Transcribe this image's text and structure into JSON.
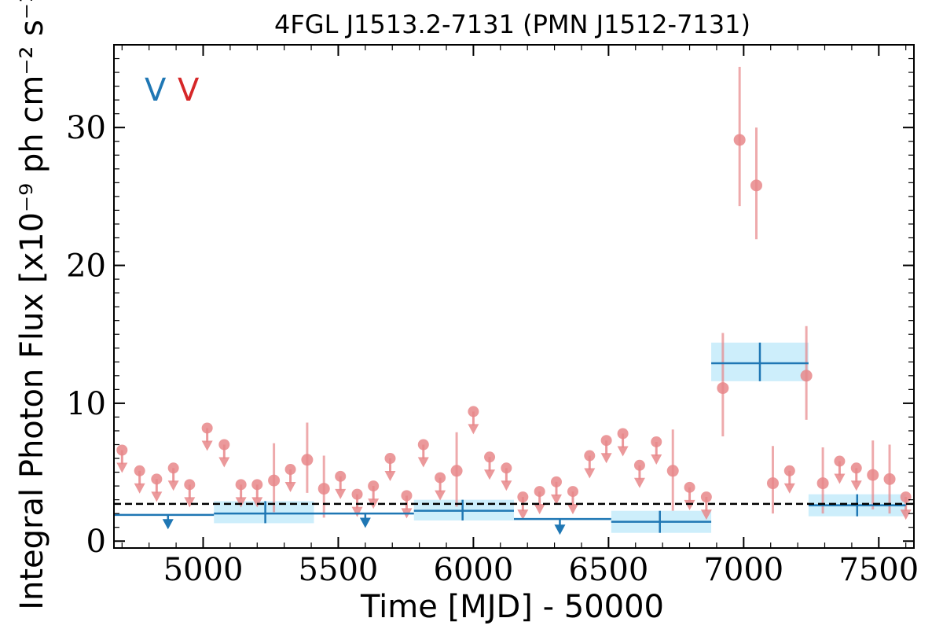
{
  "chart_data": {
    "type": "scatter",
    "title": "4FGL J1513.2-7131 (PMN J1512-7131)",
    "xlabel": "Time [MJD] - 50000",
    "ylabel": "Integral Photon Flux [x10⁻⁹ ph cm⁻² s⁻¹]",
    "xlim": [
      4670,
      7630
    ],
    "ylim": [
      -0.5,
      36
    ],
    "x_ticks": [
      5000,
      5500,
      6000,
      6500,
      7000,
      7500
    ],
    "y_ticks": [
      0,
      10,
      20,
      30
    ],
    "reference_line": {
      "y": 2.7,
      "style": "dashed",
      "color": "#000000"
    },
    "legend": {
      "placement": "top-left",
      "entries": [
        {
          "text": "V",
          "color": "#1f77b4"
        },
        {
          "text": "V",
          "color": "#d62728"
        }
      ]
    },
    "series": [
      {
        "color": "#1f77b4",
        "band_color": "#cdeefb",
        "bins": [
          {
            "x0": 4670,
            "x1": 5040,
            "y": 1.9,
            "upper_limit": true,
            "marker_x": 4870,
            "marker_y": 1.2
          },
          {
            "x0": 5040,
            "x1": 5410,
            "y": 2.0,
            "ylo": 1.3,
            "yhi": 2.9,
            "xc": 5230
          },
          {
            "x0": 5410,
            "x1": 5780,
            "y": 2.0,
            "upper_limit": true,
            "marker_x": 5600,
            "marker_y": 1.3
          },
          {
            "x0": 5780,
            "x1": 6150,
            "y": 2.2,
            "ylo": 1.5,
            "yhi": 3.0,
            "xc": 5960
          },
          {
            "x0": 6150,
            "x1": 6510,
            "y": 1.6,
            "upper_limit": true,
            "marker_x": 6320,
            "marker_y": 0.8
          },
          {
            "x0": 6510,
            "x1": 6880,
            "y": 1.4,
            "ylo": 0.6,
            "yhi": 2.2,
            "xc": 6690
          },
          {
            "x0": 6880,
            "x1": 7240,
            "y": 12.9,
            "ylo": 11.6,
            "yhi": 14.4,
            "xc": 7060
          },
          {
            "x0": 7240,
            "x1": 7600,
            "y": 2.6,
            "ylo": 1.8,
            "yhi": 3.4,
            "xc": 7420
          }
        ]
      },
      {
        "color": "#e8878a",
        "points": [
          {
            "x": 4700,
            "y": 6.6,
            "upper_limit": true
          },
          {
            "x": 4765,
            "y": 5.1,
            "upper_limit": true
          },
          {
            "x": 4828,
            "y": 4.5,
            "upper_limit": true
          },
          {
            "x": 4890,
            "y": 5.3,
            "upper_limit": true
          },
          {
            "x": 4950,
            "y": 4.1,
            "upper_limit": true
          },
          {
            "x": 5015,
            "y": 8.2,
            "upper_limit": true
          },
          {
            "x": 5078,
            "y": 7.0,
            "upper_limit": true
          },
          {
            "x": 5140,
            "y": 4.1,
            "upper_limit": true
          },
          {
            "x": 5200,
            "y": 4.1,
            "upper_limit": true
          },
          {
            "x": 5262,
            "y": 4.4,
            "ylo": 2.1,
            "yhi": 7.1
          },
          {
            "x": 5323,
            "y": 5.2,
            "upper_limit": true
          },
          {
            "x": 5385,
            "y": 5.9,
            "ylo": 3.5,
            "yhi": 8.6
          },
          {
            "x": 5447,
            "y": 3.8,
            "ylo": 1.7,
            "yhi": 6.2
          },
          {
            "x": 5508,
            "y": 4.7,
            "upper_limit": true
          },
          {
            "x": 5570,
            "y": 3.4,
            "upper_limit": true
          },
          {
            "x": 5630,
            "y": 4.0,
            "upper_limit": true
          },
          {
            "x": 5692,
            "y": 6.0,
            "upper_limit": true
          },
          {
            "x": 5753,
            "y": 3.3,
            "upper_limit": true
          },
          {
            "x": 5815,
            "y": 7.0,
            "upper_limit": true
          },
          {
            "x": 5877,
            "y": 4.6,
            "upper_limit": true
          },
          {
            "x": 5938,
            "y": 5.1,
            "ylo": 2.5,
            "yhi": 7.9
          },
          {
            "x": 6000,
            "y": 9.4,
            "upper_limit": true
          },
          {
            "x": 6060,
            "y": 6.1,
            "upper_limit": true
          },
          {
            "x": 6122,
            "y": 5.3,
            "upper_limit": true
          },
          {
            "x": 6183,
            "y": 3.2,
            "upper_limit": true
          },
          {
            "x": 6245,
            "y": 3.6,
            "upper_limit": true
          },
          {
            "x": 6307,
            "y": 4.3,
            "upper_limit": true
          },
          {
            "x": 6368,
            "y": 3.6,
            "upper_limit": true
          },
          {
            "x": 6430,
            "y": 6.2,
            "upper_limit": true
          },
          {
            "x": 6492,
            "y": 7.3,
            "upper_limit": true
          },
          {
            "x": 6553,
            "y": 7.8,
            "upper_limit": true
          },
          {
            "x": 6615,
            "y": 5.5,
            "upper_limit": true
          },
          {
            "x": 6677,
            "y": 7.2,
            "upper_limit": true
          },
          {
            "x": 6738,
            "y": 5.1,
            "ylo": 2.2,
            "yhi": 8.1
          },
          {
            "x": 6800,
            "y": 3.9,
            "upper_limit": true
          },
          {
            "x": 6862,
            "y": 3.2,
            "upper_limit": true
          },
          {
            "x": 6923,
            "y": 11.1,
            "ylo": 7.6,
            "yhi": 15.1
          },
          {
            "x": 6985,
            "y": 29.1,
            "ylo": 24.3,
            "yhi": 34.4
          },
          {
            "x": 7047,
            "y": 25.8,
            "ylo": 21.9,
            "yhi": 30.0
          },
          {
            "x": 7108,
            "y": 4.2,
            "ylo": 2.0,
            "yhi": 6.9
          },
          {
            "x": 7170,
            "y": 5.1,
            "upper_limit": true
          },
          {
            "x": 7232,
            "y": 12.0,
            "ylo": 8.8,
            "yhi": 15.6
          },
          {
            "x": 7293,
            "y": 4.2,
            "ylo": 2.0,
            "yhi": 6.8
          },
          {
            "x": 7355,
            "y": 5.8,
            "upper_limit": true
          },
          {
            "x": 7417,
            "y": 5.3,
            "upper_limit": true
          },
          {
            "x": 7478,
            "y": 4.8,
            "ylo": 2.3,
            "yhi": 7.3
          },
          {
            "x": 7540,
            "y": 4.5,
            "ylo": 2.0,
            "yhi": 7.0
          },
          {
            "x": 7600,
            "y": 3.2,
            "upper_limit": true
          }
        ]
      }
    ]
  }
}
